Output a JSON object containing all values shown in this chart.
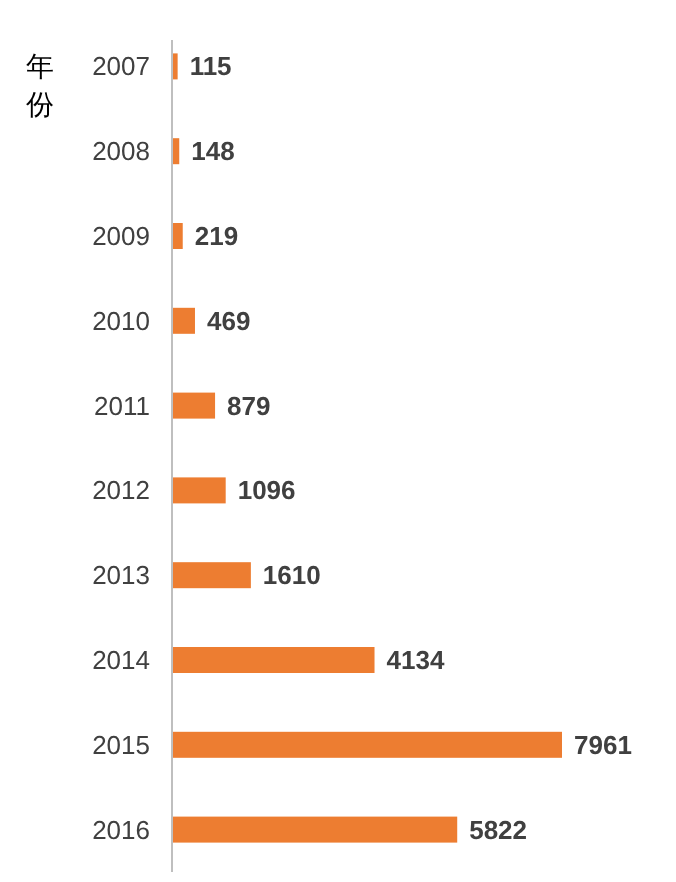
{
  "chart_data": {
    "type": "bar",
    "orientation": "horizontal",
    "ylabel": "年份",
    "categories": [
      "2007",
      "2008",
      "2009",
      "2010",
      "2011",
      "2012",
      "2013",
      "2014",
      "2015",
      "2016"
    ],
    "values": [
      115,
      148,
      219,
      469,
      879,
      1096,
      1610,
      4134,
      7961,
      5822
    ],
    "color": "#ed7d31",
    "data_labels": true
  }
}
